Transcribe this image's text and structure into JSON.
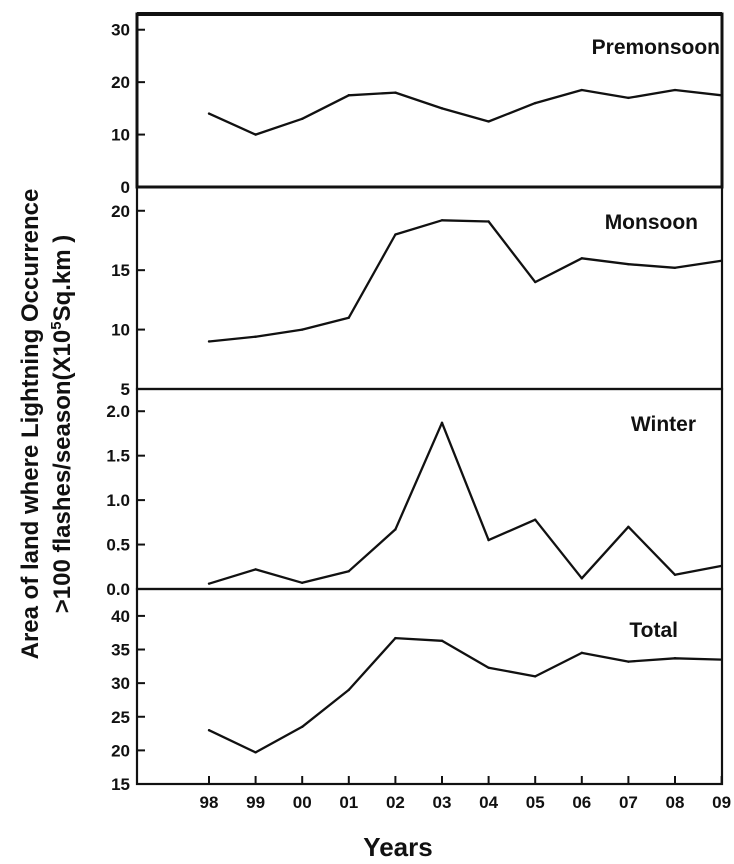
{
  "chart_data": {
    "type": "line",
    "xlabel": "Years",
    "ylabel_line1": "Area of land where Lightning Occurrence",
    "ylabel_line2_pre": ">100 flashes/season(X10",
    "ylabel_sup": "5",
    "ylabel_line2_post": "Sq.km )",
    "x": [
      "98",
      "99",
      "00",
      "01",
      "02",
      "03",
      "04",
      "05",
      "06",
      "07",
      "08",
      "09"
    ],
    "grid": false,
    "panels": [
      {
        "name": "Premonsoon",
        "ylim": [
          0,
          33
        ],
        "yticks": [
          {
            "value": 0,
            "label": "0"
          },
          {
            "value": 10,
            "label": "10"
          },
          {
            "value": 20,
            "label": "20"
          },
          {
            "value": 30,
            "label": "30"
          }
        ],
        "values": [
          14,
          10,
          13,
          17.5,
          18,
          15,
          12.5,
          16,
          18.5,
          17,
          18.5,
          17.5
        ]
      },
      {
        "name": "Monsoon",
        "ylim": [
          5,
          22
        ],
        "yticks": [
          {
            "value": 5,
            "label": "5"
          },
          {
            "value": 10,
            "label": "10"
          },
          {
            "value": 15,
            "label": "15"
          },
          {
            "value": 20,
            "label": "20"
          }
        ],
        "values": [
          9,
          9.4,
          10,
          11,
          18,
          19.2,
          19.1,
          14,
          16,
          15.5,
          15.2,
          15.8
        ]
      },
      {
        "name": "Winter",
        "ylim": [
          0,
          2.25
        ],
        "yticks": [
          {
            "value": 0,
            "label": "0.0"
          },
          {
            "value": 0.5,
            "label": "0.5"
          },
          {
            "value": 1.0,
            "label": "1.0"
          },
          {
            "value": 1.5,
            "label": "1.5"
          },
          {
            "value": 2.0,
            "label": "2.0"
          }
        ],
        "values": [
          0.06,
          0.22,
          0.07,
          0.2,
          0.67,
          1.87,
          0.55,
          0.78,
          0.12,
          0.7,
          0.16,
          0.26
        ]
      },
      {
        "name": "Total",
        "ylim": [
          15,
          44
        ],
        "yticks": [
          {
            "value": 15,
            "label": "15"
          },
          {
            "value": 20,
            "label": "20"
          },
          {
            "value": 25,
            "label": "25"
          },
          {
            "value": 30,
            "label": "30"
          },
          {
            "value": 35,
            "label": "35"
          },
          {
            "value": 40,
            "label": "40"
          }
        ],
        "values": [
          23,
          19.7,
          23.5,
          29,
          36.7,
          36.3,
          32.3,
          31,
          34.5,
          33.2,
          33.7,
          33.5
        ]
      }
    ]
  }
}
